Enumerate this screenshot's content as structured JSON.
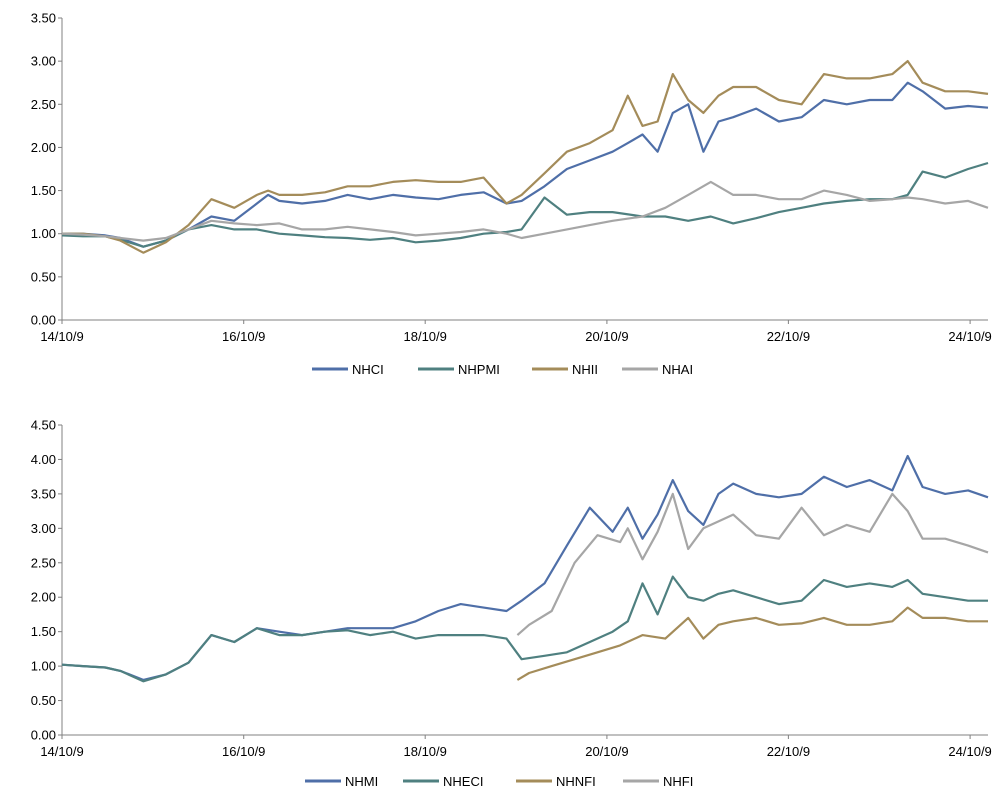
{
  "chart_data": [
    {
      "type": "line",
      "title": "",
      "xlabel": "",
      "ylabel": "",
      "ylim": [
        0,
        3.5
      ],
      "yticks": [
        "0.00",
        "0.50",
        "1.00",
        "1.50",
        "2.00",
        "2.50",
        "3.00",
        "3.50"
      ],
      "xlim": [
        "2014-10-09",
        "2024-12-20"
      ],
      "xticks": [
        "14/10/9",
        "16/10/9",
        "18/10/9",
        "20/10/9",
        "22/10/9",
        "24/10/9"
      ],
      "grid": false,
      "legend_position": "bottom",
      "series": [
        {
          "name": "NHCI",
          "color": "#4f6fa8",
          "x": [
            "2014-10-09",
            "2015-01-01",
            "2015-04-01",
            "2015-06-01",
            "2015-09-01",
            "2015-12-01",
            "2016-03-01",
            "2016-06-01",
            "2016-09-01",
            "2016-12-01",
            "2017-01-15",
            "2017-03-01",
            "2017-06-01",
            "2017-09-01",
            "2017-12-01",
            "2018-03-01",
            "2018-06-01",
            "2018-09-01",
            "2018-12-01",
            "2019-03-01",
            "2019-06-01",
            "2019-09-01",
            "2019-11-01",
            "2020-02-01",
            "2020-05-01",
            "2020-08-01",
            "2020-11-01",
            "2021-01-01",
            "2021-03-01",
            "2021-05-01",
            "2021-07-01",
            "2021-09-01",
            "2021-11-01",
            "2022-01-01",
            "2022-03-01",
            "2022-06-01",
            "2022-09-01",
            "2022-12-01",
            "2023-03-01",
            "2023-06-01",
            "2023-09-01",
            "2023-12-01",
            "2024-02-01",
            "2024-04-01",
            "2024-07-01",
            "2024-10-01",
            "2024-12-20"
          ],
          "y": [
            1.0,
            1.0,
            0.98,
            0.95,
            0.85,
            0.92,
            1.05,
            1.2,
            1.15,
            1.35,
            1.45,
            1.38,
            1.35,
            1.38,
            1.45,
            1.4,
            1.45,
            1.42,
            1.4,
            1.45,
            1.48,
            1.35,
            1.38,
            1.55,
            1.75,
            1.85,
            1.95,
            2.05,
            2.15,
            1.95,
            2.4,
            2.5,
            1.95,
            2.3,
            2.35,
            2.45,
            2.3,
            2.35,
            2.55,
            2.5,
            2.55,
            2.55,
            2.75,
            2.65,
            2.45,
            2.48,
            2.46
          ]
        },
        {
          "name": "NHPMI",
          "color": "#4f8080",
          "x": [
            "2014-10-09",
            "2015-01-01",
            "2015-04-01",
            "2015-06-01",
            "2015-09-01",
            "2015-12-01",
            "2016-03-01",
            "2016-06-01",
            "2016-09-01",
            "2016-12-01",
            "2017-03-01",
            "2017-06-01",
            "2017-09-01",
            "2017-12-01",
            "2018-03-01",
            "2018-06-01",
            "2018-09-01",
            "2018-12-01",
            "2019-03-01",
            "2019-06-01",
            "2019-09-01",
            "2019-11-01",
            "2020-02-01",
            "2020-05-01",
            "2020-08-01",
            "2020-11-01",
            "2021-03-01",
            "2021-06-01",
            "2021-09-01",
            "2021-12-01",
            "2022-03-01",
            "2022-06-01",
            "2022-09-01",
            "2022-12-01",
            "2023-03-01",
            "2023-06-01",
            "2023-09-01",
            "2023-12-01",
            "2024-02-01",
            "2024-04-01",
            "2024-07-01",
            "2024-10-01",
            "2024-12-20"
          ],
          "y": [
            0.98,
            0.97,
            0.97,
            0.93,
            0.85,
            0.92,
            1.05,
            1.1,
            1.05,
            1.05,
            1.0,
            0.98,
            0.96,
            0.95,
            0.93,
            0.95,
            0.9,
            0.92,
            0.95,
            1.0,
            1.02,
            1.05,
            1.42,
            1.22,
            1.25,
            1.25,
            1.2,
            1.2,
            1.15,
            1.2,
            1.12,
            1.18,
            1.25,
            1.3,
            1.35,
            1.38,
            1.4,
            1.4,
            1.45,
            1.72,
            1.65,
            1.75,
            1.82
          ]
        },
        {
          "name": "NHII",
          "color": "#a48c5a",
          "x": [
            "2014-10-09",
            "2015-01-01",
            "2015-04-01",
            "2015-06-01",
            "2015-09-01",
            "2015-12-01",
            "2016-03-01",
            "2016-06-01",
            "2016-09-01",
            "2016-12-01",
            "2017-01-15",
            "2017-03-01",
            "2017-06-01",
            "2017-09-01",
            "2017-12-01",
            "2018-03-01",
            "2018-06-01",
            "2018-09-01",
            "2018-12-01",
            "2019-03-01",
            "2019-06-01",
            "2019-09-01",
            "2019-11-01",
            "2020-02-01",
            "2020-05-01",
            "2020-08-01",
            "2020-11-01",
            "2021-01-01",
            "2021-03-01",
            "2021-05-01",
            "2021-07-01",
            "2021-09-01",
            "2021-11-01",
            "2022-01-01",
            "2022-03-01",
            "2022-06-01",
            "2022-09-01",
            "2022-12-01",
            "2023-03-01",
            "2023-06-01",
            "2023-09-01",
            "2023-12-01",
            "2024-02-01",
            "2024-04-01",
            "2024-07-01",
            "2024-10-01",
            "2024-12-20"
          ],
          "y": [
            1.0,
            1.0,
            0.97,
            0.92,
            0.78,
            0.9,
            1.1,
            1.4,
            1.3,
            1.45,
            1.5,
            1.45,
            1.45,
            1.48,
            1.55,
            1.55,
            1.6,
            1.62,
            1.6,
            1.6,
            1.65,
            1.35,
            1.45,
            1.7,
            1.95,
            2.05,
            2.2,
            2.6,
            2.25,
            2.3,
            2.85,
            2.55,
            2.4,
            2.6,
            2.7,
            2.7,
            2.55,
            2.5,
            2.85,
            2.8,
            2.8,
            2.85,
            3.0,
            2.75,
            2.65,
            2.65,
            2.62
          ]
        },
        {
          "name": "NHAI",
          "color": "#a6a6a6",
          "x": [
            "2014-10-09",
            "2015-01-01",
            "2015-04-01",
            "2015-06-01",
            "2015-09-01",
            "2015-12-01",
            "2016-03-01",
            "2016-06-01",
            "2016-09-01",
            "2016-12-01",
            "2017-03-01",
            "2017-06-01",
            "2017-09-01",
            "2017-12-01",
            "2018-03-01",
            "2018-06-01",
            "2018-09-01",
            "2018-12-01",
            "2019-03-01",
            "2019-06-01",
            "2019-09-01",
            "2019-11-01",
            "2020-02-01",
            "2020-05-01",
            "2020-08-01",
            "2020-11-01",
            "2021-03-01",
            "2021-06-01",
            "2021-09-01",
            "2021-12-01",
            "2022-03-01",
            "2022-06-01",
            "2022-09-01",
            "2022-12-01",
            "2023-03-01",
            "2023-06-01",
            "2023-09-01",
            "2023-12-01",
            "2024-02-01",
            "2024-04-01",
            "2024-07-01",
            "2024-10-01",
            "2024-12-20"
          ],
          "y": [
            1.0,
            0.99,
            0.97,
            0.95,
            0.92,
            0.95,
            1.05,
            1.15,
            1.12,
            1.1,
            1.12,
            1.05,
            1.05,
            1.08,
            1.05,
            1.02,
            0.98,
            1.0,
            1.02,
            1.05,
            1.0,
            0.95,
            1.0,
            1.05,
            1.1,
            1.15,
            1.2,
            1.3,
            1.45,
            1.6,
            1.45,
            1.45,
            1.4,
            1.4,
            1.5,
            1.45,
            1.38,
            1.4,
            1.42,
            1.4,
            1.35,
            1.38,
            1.3
          ]
        }
      ]
    },
    {
      "type": "line",
      "title": "",
      "xlabel": "",
      "ylabel": "",
      "ylim": [
        0,
        4.5
      ],
      "yticks": [
        "0.00",
        "0.50",
        "1.00",
        "1.50",
        "2.00",
        "2.50",
        "3.00",
        "3.50",
        "4.00",
        "4.50"
      ],
      "xlim": [
        "2014-10-09",
        "2024-12-20"
      ],
      "xticks": [
        "14/10/9",
        "16/10/9",
        "18/10/9",
        "20/10/9",
        "22/10/9",
        "24/10/9"
      ],
      "grid": false,
      "legend_position": "bottom",
      "series": [
        {
          "name": "NHMI",
          "color": "#4f6fa8",
          "x": [
            "2014-10-09",
            "2015-01-01",
            "2015-04-01",
            "2015-06-01",
            "2015-09-01",
            "2015-12-01",
            "2016-03-01",
            "2016-06-01",
            "2016-09-01",
            "2016-12-01",
            "2017-03-01",
            "2017-06-01",
            "2017-09-01",
            "2017-12-01",
            "2018-03-01",
            "2018-06-01",
            "2018-09-01",
            "2018-12-01",
            "2019-03-01",
            "2019-06-01",
            "2019-09-01",
            "2019-11-01",
            "2020-02-01",
            "2020-05-01",
            "2020-08-01",
            "2020-11-01",
            "2021-01-01",
            "2021-03-01",
            "2021-05-01",
            "2021-07-01",
            "2021-09-01",
            "2021-11-01",
            "2022-01-01",
            "2022-03-01",
            "2022-06-01",
            "2022-09-01",
            "2022-12-01",
            "2023-03-01",
            "2023-06-01",
            "2023-09-01",
            "2023-12-01",
            "2024-02-01",
            "2024-04-01",
            "2024-07-01",
            "2024-10-01",
            "2024-12-20"
          ],
          "y": [
            1.02,
            1.0,
            0.98,
            0.93,
            0.8,
            0.88,
            1.05,
            1.45,
            1.35,
            1.55,
            1.5,
            1.45,
            1.5,
            1.55,
            1.55,
            1.55,
            1.65,
            1.8,
            1.9,
            1.85,
            1.8,
            1.95,
            2.2,
            2.75,
            3.3,
            2.95,
            3.3,
            2.85,
            3.2,
            3.7,
            3.25,
            3.05,
            3.5,
            3.65,
            3.5,
            3.45,
            3.5,
            3.75,
            3.6,
            3.7,
            3.55,
            4.05,
            3.6,
            3.5,
            3.55,
            3.45
          ]
        },
        {
          "name": "NHECI",
          "color": "#4f8080",
          "x": [
            "2014-10-09",
            "2015-01-01",
            "2015-04-01",
            "2015-06-01",
            "2015-09-01",
            "2015-12-01",
            "2016-03-01",
            "2016-06-01",
            "2016-09-01",
            "2016-12-01",
            "2017-03-01",
            "2017-06-01",
            "2017-09-01",
            "2017-12-01",
            "2018-03-01",
            "2018-06-01",
            "2018-09-01",
            "2018-12-01",
            "2019-03-01",
            "2019-06-01",
            "2019-09-01",
            "2019-11-01",
            "2020-02-01",
            "2020-05-01",
            "2020-08-01",
            "2020-11-01",
            "2021-01-01",
            "2021-03-01",
            "2021-05-01",
            "2021-07-01",
            "2021-09-01",
            "2021-11-01",
            "2022-01-01",
            "2022-03-01",
            "2022-06-01",
            "2022-09-01",
            "2022-12-01",
            "2023-03-01",
            "2023-06-01",
            "2023-09-01",
            "2023-12-01",
            "2024-02-01",
            "2024-04-01",
            "2024-07-01",
            "2024-10-01",
            "2024-12-20"
          ],
          "y": [
            1.02,
            1.0,
            0.98,
            0.93,
            0.78,
            0.88,
            1.05,
            1.45,
            1.35,
            1.55,
            1.45,
            1.45,
            1.5,
            1.52,
            1.45,
            1.5,
            1.4,
            1.45,
            1.45,
            1.45,
            1.4,
            1.1,
            1.15,
            1.2,
            1.35,
            1.5,
            1.65,
            2.2,
            1.75,
            2.3,
            2.0,
            1.95,
            2.05,
            2.1,
            2.0,
            1.9,
            1.95,
            2.25,
            2.15,
            2.2,
            2.15,
            2.25,
            2.05,
            2.0,
            1.95,
            1.95
          ]
        },
        {
          "name": "NHNFI",
          "color": "#a48c5a",
          "x": [
            "2019-10-15",
            "2019-12-01",
            "2020-03-01",
            "2020-06-01",
            "2020-09-01",
            "2020-12-01",
            "2021-03-01",
            "2021-06-01",
            "2021-09-01",
            "2021-11-01",
            "2022-01-01",
            "2022-03-01",
            "2022-06-01",
            "2022-09-01",
            "2022-12-01",
            "2023-03-01",
            "2023-06-01",
            "2023-09-01",
            "2023-12-01",
            "2024-02-01",
            "2024-04-01",
            "2024-07-01",
            "2024-10-01",
            "2024-12-20"
          ],
          "y": [
            0.8,
            0.9,
            1.0,
            1.1,
            1.2,
            1.3,
            1.45,
            1.4,
            1.7,
            1.4,
            1.6,
            1.65,
            1.7,
            1.6,
            1.62,
            1.7,
            1.6,
            1.6,
            1.65,
            1.85,
            1.7,
            1.7,
            1.65,
            1.65
          ]
        },
        {
          "name": "NHFI",
          "color": "#a6a6a6",
          "x": [
            "2019-10-15",
            "2019-12-01",
            "2020-03-01",
            "2020-06-01",
            "2020-09-01",
            "2020-12-01",
            "2021-01-01",
            "2021-03-01",
            "2021-05-01",
            "2021-07-01",
            "2021-09-01",
            "2021-11-01",
            "2022-01-01",
            "2022-03-01",
            "2022-06-01",
            "2022-09-01",
            "2022-12-01",
            "2023-03-01",
            "2023-06-01",
            "2023-09-01",
            "2023-12-01",
            "2024-02-01",
            "2024-04-01",
            "2024-07-01",
            "2024-10-01",
            "2024-12-20"
          ],
          "y": [
            1.45,
            1.6,
            1.8,
            2.5,
            2.9,
            2.8,
            3.0,
            2.55,
            2.95,
            3.5,
            2.7,
            3.0,
            3.1,
            3.2,
            2.9,
            2.85,
            3.3,
            2.9,
            3.05,
            2.95,
            3.5,
            3.25,
            2.85,
            2.85,
            2.75,
            2.65
          ]
        }
      ]
    }
  ]
}
